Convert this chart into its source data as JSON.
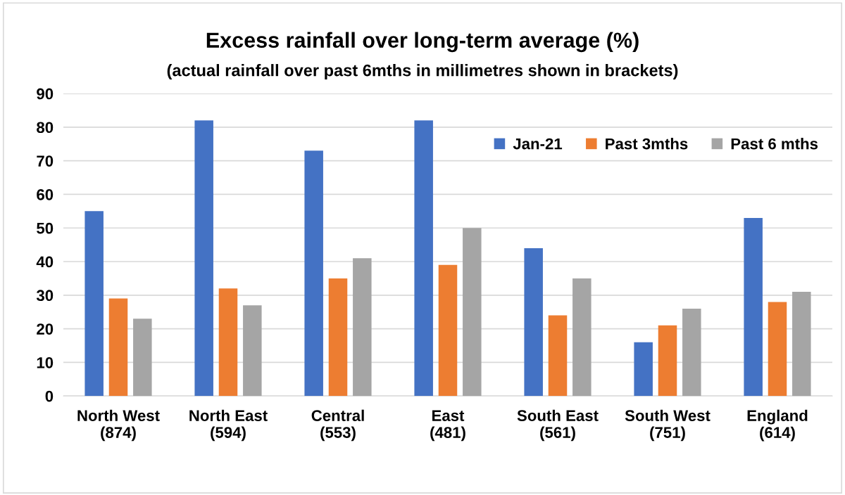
{
  "chart_data": {
    "type": "bar",
    "title": "Excess rainfall over long-term average (%)",
    "subtitle": "(actual rainfall over past 6mths in millimetres shown in brackets)",
    "categories": [
      "North West\n(874)",
      "North East\n(594)",
      "Central\n(553)",
      "East\n(481)",
      "South East\n(561)",
      "South West\n(751)",
      "England\n(614)"
    ],
    "series": [
      {
        "name": "Jan-21",
        "color": "#4472c4",
        "values": [
          55,
          82,
          73,
          82,
          44,
          16,
          53
        ]
      },
      {
        "name": "Past 3mths",
        "color": "#ed7d31",
        "values": [
          29,
          32,
          35,
          39,
          24,
          21,
          28
        ]
      },
      {
        "name": "Past 6 mths",
        "color": "#a5a5a5",
        "values": [
          23,
          27,
          41,
          50,
          35,
          26,
          31
        ]
      }
    ],
    "ylim": [
      0,
      90
    ],
    "yticks": [
      0,
      10,
      20,
      30,
      40,
      50,
      60,
      70,
      80,
      90
    ],
    "grid": "y",
    "legend": "top right"
  }
}
